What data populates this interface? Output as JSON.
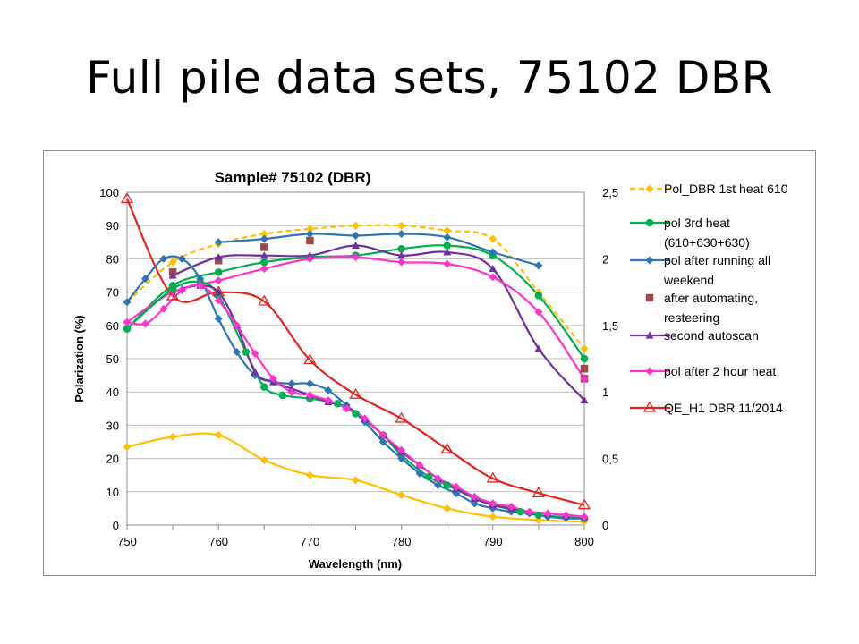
{
  "slide": {
    "title": "Full pile data sets, 75102 DBR"
  },
  "chart_data": {
    "type": "line",
    "title": "Sample# 75102 (DBR)",
    "xlabel": "Wavelength (nm)",
    "ylabel": "Polarization (%)",
    "y2label": "",
    "xlim": [
      750,
      800
    ],
    "ylim": [
      0,
      100
    ],
    "y2lim": [
      0,
      2.5
    ],
    "x_ticks": [
      "750",
      "760",
      "770",
      "780",
      "790",
      "800"
    ],
    "y_ticks": [
      "0",
      "10",
      "20",
      "30",
      "40",
      "50",
      "60",
      "70",
      "80",
      "90",
      "100"
    ],
    "y2_ticks": [
      "0",
      "0,5",
      "1",
      "1,5",
      "2",
      "2,5"
    ],
    "grid": "horizontal",
    "legend_position": "right",
    "series": [
      {
        "name": "Pol_DBR 1st heat 610",
        "color": "#FFC000",
        "marker": "diamond",
        "line": "dashed",
        "axis": "left",
        "points": [
          [
            750,
            67
          ],
          [
            755,
            79
          ],
          [
            760,
            84.5
          ],
          [
            765,
            87.5
          ],
          [
            770,
            89
          ],
          [
            775,
            90
          ],
          [
            780,
            90
          ],
          [
            785,
            88.5
          ],
          [
            790,
            86
          ],
          [
            795,
            70
          ],
          [
            800,
            53
          ]
        ]
      },
      {
        "name": "pol 3rd heat (610+630+630)",
        "color": "#00B050",
        "marker": "circle",
        "line": "solid",
        "axis": "left",
        "points": [
          [
            750,
            59
          ],
          [
            755,
            72
          ],
          [
            760,
            76
          ],
          [
            765,
            79
          ],
          [
            770,
            80.5
          ],
          [
            775,
            81
          ],
          [
            780,
            83
          ],
          [
            785,
            84
          ],
          [
            790,
            81
          ],
          [
            795,
            69
          ],
          [
            800,
            50
          ]
        ]
      },
      {
        "name": "pol after running all weekend",
        "color": "#2E75B6",
        "marker": "diamond",
        "line": "solid",
        "axis": "left",
        "points": [
          [
            760,
            85
          ],
          [
            765,
            86
          ],
          [
            770,
            87.5
          ],
          [
            775,
            87
          ],
          [
            780,
            87.5
          ],
          [
            785,
            86.5
          ],
          [
            790,
            82
          ],
          [
            795,
            78
          ]
        ]
      },
      {
        "name": "after automating, resteering",
        "color": "#9E4A4A",
        "marker": "square",
        "line": "none",
        "axis": "left",
        "points": [
          [
            755,
            76
          ],
          [
            760,
            79.5
          ],
          [
            765,
            83.5
          ],
          [
            770,
            85.5
          ],
          [
            800,
            47
          ],
          [
            800,
            44
          ]
        ]
      },
      {
        "name": "second autoscan",
        "color": "#7030A0",
        "marker": "triangle",
        "line": "solid",
        "axis": "left",
        "points": [
          [
            755,
            75
          ],
          [
            760,
            80.5
          ],
          [
            765,
            81
          ],
          [
            770,
            81
          ],
          [
            775,
            84
          ],
          [
            780,
            81
          ],
          [
            785,
            82
          ],
          [
            790,
            77
          ],
          [
            795,
            53
          ],
          [
            800,
            37.5
          ]
        ]
      },
      {
        "name": "pol after 2 hour heat",
        "color": "#FF33CC",
        "marker": "diamond",
        "line": "solid",
        "axis": "left",
        "points": [
          [
            750,
            61
          ],
          [
            755,
            70
          ],
          [
            760,
            73.5
          ],
          [
            765,
            77
          ],
          [
            770,
            80
          ],
          [
            775,
            80.5
          ],
          [
            780,
            79
          ],
          [
            785,
            78.5
          ],
          [
            790,
            74.5
          ],
          [
            795,
            64
          ],
          [
            800,
            44
          ]
        ]
      },
      {
        "name": "QE_H1 DBR 11/2014",
        "color": "#E8231E",
        "marker": "triangle-open",
        "line": "solid",
        "axis": "right",
        "points": [
          [
            750,
            2.45
          ],
          [
            755,
            1.72
          ],
          [
            760,
            1.75
          ],
          [
            765,
            1.68
          ],
          [
            770,
            1.24
          ],
          [
            775,
            0.98
          ],
          [
            780,
            0.8
          ],
          [
            785,
            0.57
          ],
          [
            790,
            0.35
          ],
          [
            795,
            0.24
          ],
          [
            800,
            0.15
          ]
        ]
      },
      {
        "name": "",
        "color": "#FFC000",
        "marker": "diamond",
        "line": "solid",
        "axis": "left",
        "points": [
          [
            750,
            23.5
          ],
          [
            755,
            26.5
          ],
          [
            760,
            27
          ],
          [
            765,
            19.5
          ],
          [
            770,
            15
          ],
          [
            775,
            13.5
          ],
          [
            780,
            9
          ],
          [
            785,
            5
          ],
          [
            790,
            2.5
          ],
          [
            795,
            1.5
          ],
          [
            800,
            1
          ]
        ]
      },
      {
        "name": "",
        "color": "#00B050",
        "marker": "circle",
        "line": "solid",
        "axis": "left",
        "points": [
          [
            750,
            59
          ],
          [
            755,
            71
          ],
          [
            758,
            73
          ],
          [
            760,
            69
          ],
          [
            763,
            52
          ],
          [
            765,
            41.5
          ],
          [
            767,
            39
          ],
          [
            770,
            38
          ],
          [
            773,
            36.5
          ],
          [
            775,
            33.5
          ],
          [
            778,
            27
          ],
          [
            780,
            21
          ],
          [
            783,
            14.5
          ],
          [
            785,
            12
          ],
          [
            788,
            8
          ],
          [
            790,
            6
          ],
          [
            793,
            4
          ],
          [
            795,
            3
          ],
          [
            800,
            2
          ]
        ]
      },
      {
        "name": "",
        "color": "#2E75B6",
        "marker": "diamond",
        "line": "solid",
        "axis": "left",
        "points": [
          [
            750,
            67
          ],
          [
            752,
            74
          ],
          [
            754,
            80
          ],
          [
            756,
            80
          ],
          [
            758,
            74
          ],
          [
            760,
            62
          ],
          [
            762,
            52
          ],
          [
            764,
            45
          ],
          [
            766,
            43
          ],
          [
            768,
            42.5
          ],
          [
            770,
            42.5
          ],
          [
            772,
            40.5
          ],
          [
            774,
            36
          ],
          [
            776,
            31
          ],
          [
            778,
            25
          ],
          [
            780,
            20
          ],
          [
            782,
            15.5
          ],
          [
            784,
            12
          ],
          [
            786,
            9.5
          ],
          [
            788,
            6.5
          ],
          [
            790,
            5
          ],
          [
            792,
            4
          ],
          [
            794,
            3.5
          ],
          [
            796,
            2.5
          ],
          [
            798,
            2
          ],
          [
            800,
            2
          ]
        ]
      },
      {
        "name": "",
        "color": "#7030A0",
        "marker": "triangle",
        "line": "solid",
        "axis": "left",
        "points": [
          [
            756,
            71
          ],
          [
            758,
            72
          ],
          [
            760,
            70
          ],
          [
            762,
            60
          ],
          [
            764,
            46
          ],
          [
            766,
            43
          ],
          [
            768,
            41
          ],
          [
            770,
            39
          ],
          [
            772,
            37
          ],
          [
            774,
            35.5
          ],
          [
            776,
            32
          ],
          [
            778,
            27
          ],
          [
            780,
            22
          ],
          [
            782,
            18
          ],
          [
            784,
            14
          ],
          [
            786,
            11
          ],
          [
            788,
            8
          ],
          [
            790,
            6
          ],
          [
            792,
            5
          ],
          [
            794,
            4
          ],
          [
            796,
            3.5
          ],
          [
            798,
            3
          ],
          [
            800,
            2.5
          ]
        ]
      },
      {
        "name": "",
        "color": "#FF33CC",
        "marker": "diamond",
        "line": "solid",
        "axis": "left",
        "points": [
          [
            750,
            61
          ],
          [
            752,
            60.5
          ],
          [
            754,
            65
          ],
          [
            756,
            70.5
          ],
          [
            758,
            72
          ],
          [
            760,
            67.5
          ],
          [
            762,
            60
          ],
          [
            764,
            51.5
          ],
          [
            766,
            44
          ],
          [
            768,
            40
          ],
          [
            770,
            39
          ],
          [
            772,
            37.5
          ],
          [
            774,
            35
          ],
          [
            776,
            32
          ],
          [
            778,
            27
          ],
          [
            780,
            22.5
          ],
          [
            782,
            18
          ],
          [
            784,
            14
          ],
          [
            786,
            11.5
          ],
          [
            788,
            8.5
          ],
          [
            790,
            6.5
          ],
          [
            792,
            5.5
          ],
          [
            794,
            4
          ],
          [
            796,
            3.5
          ],
          [
            798,
            3
          ],
          [
            800,
            2.5
          ]
        ]
      }
    ]
  }
}
